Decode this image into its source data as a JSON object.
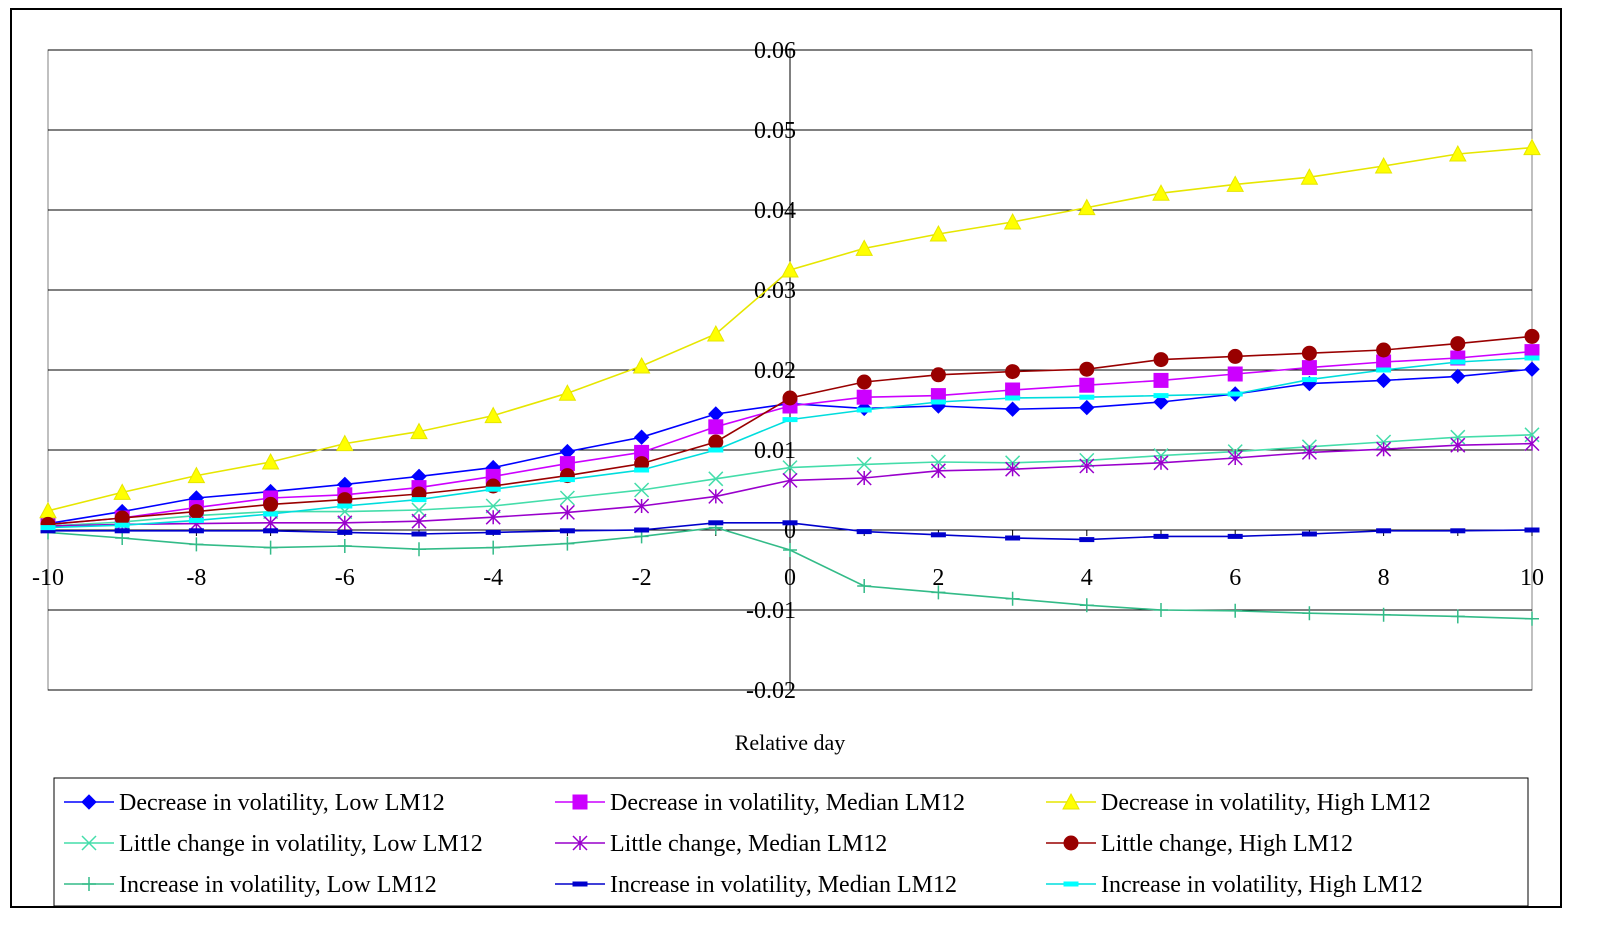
{
  "chart_data": {
    "type": "line",
    "title": "",
    "xlabel": "Relative day",
    "ylabel": "",
    "xlim": [
      -10,
      10
    ],
    "ylim": [
      -0.02,
      0.06
    ],
    "x_ticks": [
      -10,
      -8,
      -6,
      -4,
      -2,
      0,
      2,
      4,
      6,
      8,
      10
    ],
    "x_tick_labels": [
      "-10",
      "-8",
      "-6",
      "-4",
      "-2",
      "0",
      "2",
      "4",
      "6",
      "8",
      "10"
    ],
    "y_ticks": [
      -0.02,
      -0.01,
      0,
      0.01,
      0.02,
      0.03,
      0.04,
      0.05,
      0.06
    ],
    "y_tick_labels": [
      "-0.02",
      "-0.01",
      "0",
      "0.01",
      "0.02",
      "0.03",
      "0.04",
      "0.05",
      "0.06"
    ],
    "grid": "horizontal",
    "legend_position": "bottom",
    "x": [
      -10,
      -9,
      -8,
      -7,
      -6,
      -5,
      -4,
      -3,
      -2,
      -1,
      0,
      1,
      2,
      3,
      4,
      5,
      6,
      7,
      8,
      9,
      10
    ],
    "series": [
      {
        "name": "Decrease in volatility, Low LM12",
        "color": "#0000FF",
        "marker": "diamond",
        "values": [
          0.0008,
          0.0023,
          0.004,
          0.0048,
          0.0057,
          0.0067,
          0.0078,
          0.0098,
          0.0116,
          0.0145,
          0.0158,
          0.0152,
          0.0155,
          0.0151,
          0.0153,
          0.016,
          0.017,
          0.0183,
          0.0187,
          0.0192,
          0.0201
        ]
      },
      {
        "name": "Decrease in volatility, Median LM12",
        "color": "#CC00FF",
        "marker": "square",
        "values": [
          0.0007,
          0.0015,
          0.0028,
          0.004,
          0.0044,
          0.0053,
          0.0067,
          0.0083,
          0.0097,
          0.0129,
          0.0155,
          0.0166,
          0.0168,
          0.0175,
          0.0181,
          0.0187,
          0.0195,
          0.0203,
          0.021,
          0.0215,
          0.0223
        ]
      },
      {
        "name": "Decrease in volatility, High LM12",
        "color": "#FFFF00",
        "stroke": "#E6E600",
        "marker": "triangle",
        "values": [
          0.0024,
          0.0047,
          0.0068,
          0.0085,
          0.0108,
          0.0123,
          0.0143,
          0.0171,
          0.0205,
          0.0245,
          0.0325,
          0.0352,
          0.037,
          0.0385,
          0.0403,
          0.0421,
          0.0432,
          0.0441,
          0.0455,
          0.047,
          0.0478
        ]
      },
      {
        "name": "Little change in volatility, Low LM12",
        "color": "#66FFCC",
        "stroke": "#44DDAA",
        "marker": "x",
        "values": [
          0.0005,
          0.001,
          0.0018,
          0.0023,
          0.0023,
          0.0025,
          0.003,
          0.004,
          0.005,
          0.0064,
          0.0078,
          0.0082,
          0.0085,
          0.0084,
          0.0087,
          0.0093,
          0.0098,
          0.0104,
          0.011,
          0.0116,
          0.0119
        ]
      },
      {
        "name": "Little change, Median LM12",
        "color": "#9900CC",
        "marker": "star",
        "values": [
          0.0005,
          0.0007,
          0.0008,
          0.0009,
          0.0009,
          0.0011,
          0.0016,
          0.0022,
          0.003,
          0.0042,
          0.0062,
          0.0065,
          0.0074,
          0.0076,
          0.008,
          0.0084,
          0.009,
          0.0097,
          0.0101,
          0.0106,
          0.0108
        ]
      },
      {
        "name": "Little change, High LM12",
        "color": "#990000",
        "marker": "circle",
        "values": [
          0.0007,
          0.0015,
          0.0023,
          0.0032,
          0.0038,
          0.0045,
          0.0055,
          0.0068,
          0.0083,
          0.011,
          0.0165,
          0.0185,
          0.0194,
          0.0198,
          0.0201,
          0.0213,
          0.0217,
          0.0221,
          0.0225,
          0.0233,
          0.0242
        ]
      },
      {
        "name": "Increase in volatility, Low LM12",
        "color": "#33BB88",
        "marker": "plus",
        "values": [
          -0.0003,
          -0.001,
          -0.0018,
          -0.0022,
          -0.002,
          -0.0024,
          -0.0022,
          -0.0017,
          -0.0008,
          0.0003,
          -0.0025,
          -0.007,
          -0.0078,
          -0.0086,
          -0.0094,
          -0.01,
          -0.0101,
          -0.0104,
          -0.0106,
          -0.0108,
          -0.0111
        ]
      },
      {
        "name": "Increase in volatility, Median LM12",
        "color": "#0000CC",
        "marker": "dash",
        "values": [
          -0.0001,
          -0.0001,
          -0.0001,
          -0.0001,
          -0.0003,
          -0.0005,
          -0.0003,
          -0.0001,
          0.0,
          0.0009,
          0.0009,
          -0.0002,
          -0.0006,
          -0.001,
          -0.0012,
          -0.0008,
          -0.0008,
          -0.0005,
          -0.0001,
          -0.0001,
          0.0
        ]
      },
      {
        "name": "Increase in volatility, High LM12",
        "color": "#00FFFF",
        "stroke": "#00DDDD",
        "marker": "dash",
        "values": [
          0.0003,
          0.0006,
          0.0012,
          0.002,
          0.003,
          0.0038,
          0.0051,
          0.0063,
          0.0075,
          0.01,
          0.0138,
          0.015,
          0.016,
          0.0165,
          0.0166,
          0.0168,
          0.017,
          0.0188,
          0.02,
          0.021,
          0.0215
        ]
      }
    ]
  }
}
